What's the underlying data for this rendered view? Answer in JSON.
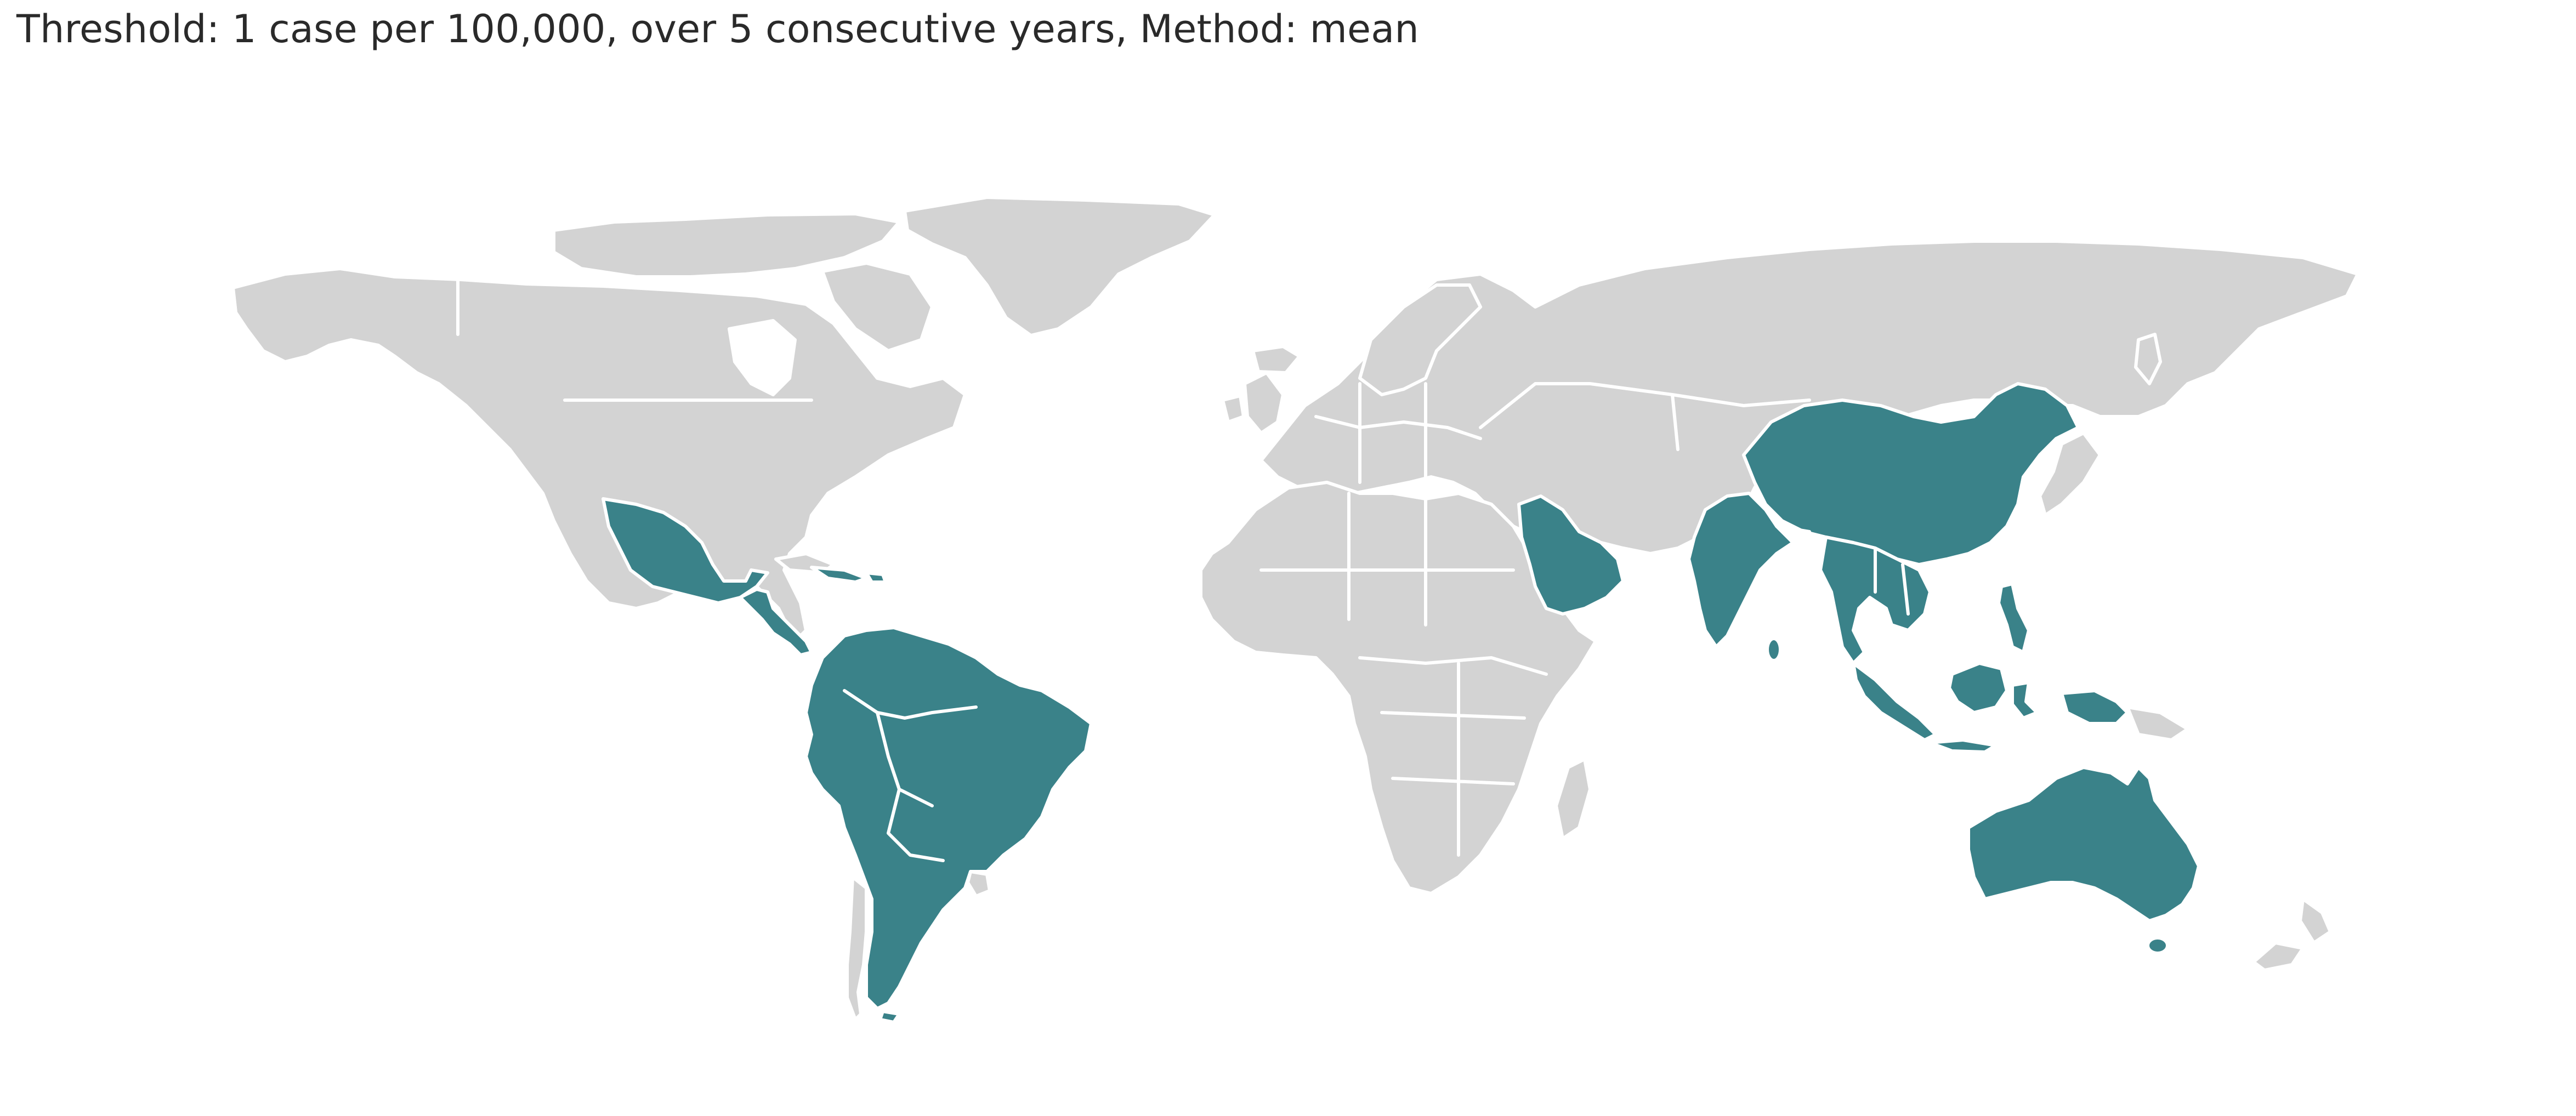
{
  "title": "Threshold: 1 case per 100,000, over 5 consecutive years, Method: mean",
  "colors": {
    "highlight": "#3a8289",
    "other": "#d3d3d3",
    "border": "#ffffff",
    "background": "#ffffff"
  },
  "map_data": {
    "type": "choropleth",
    "projection": "equirectangular world",
    "highlighted_regions": [
      "Mexico",
      "Central America",
      "Caribbean",
      "Colombia",
      "Venezuela",
      "Guyana",
      "Suriname",
      "French Guiana",
      "Ecuador",
      "Peru",
      "Bolivia",
      "Brazil",
      "Paraguay",
      "Argentina",
      "Saudi Arabia",
      "Yemen",
      "India",
      "Sri Lanka",
      "Bangladesh",
      "Myanmar",
      "Thailand",
      "Laos",
      "Cambodia",
      "Vietnam",
      "China",
      "Malaysia",
      "Indonesia",
      "Philippines",
      "Papua New Guinea",
      "Australia"
    ]
  }
}
